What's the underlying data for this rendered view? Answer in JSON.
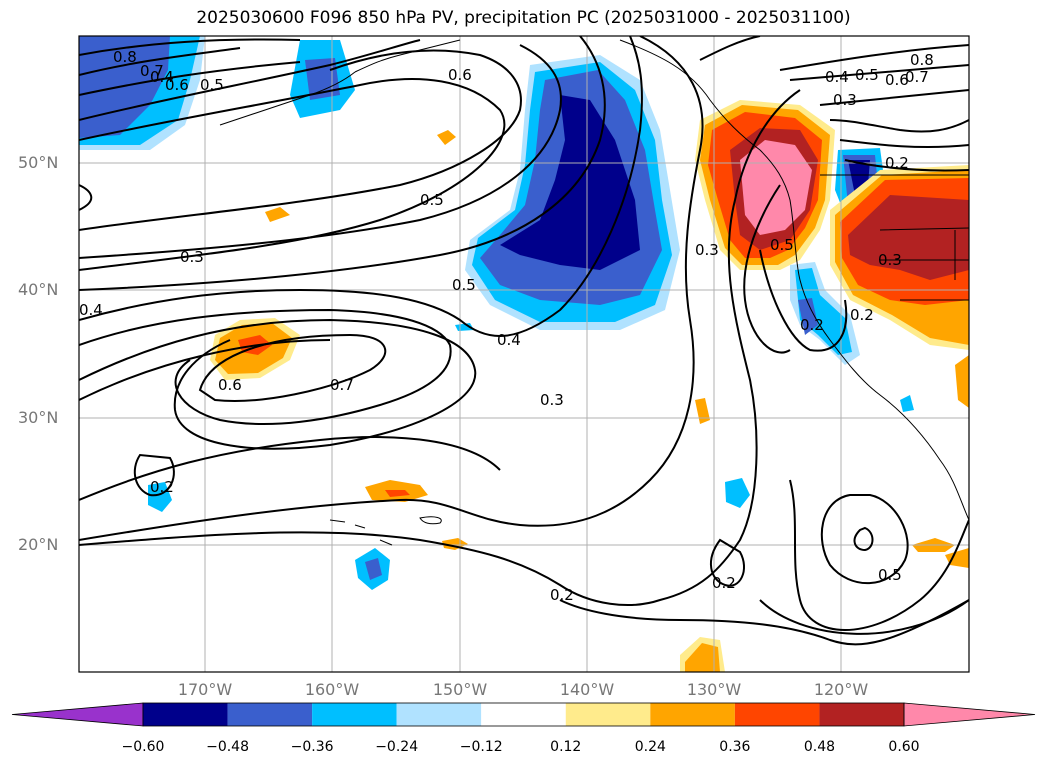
{
  "title": "2025030600 F096 850 hPa PV, precipitation PC (2025031000 - 2025031100)",
  "lat_labels": [
    "50°N",
    "40°N",
    "30°N",
    "20°N"
  ],
  "lon_labels": [
    "170°W",
    "160°W",
    "150°W",
    "140°W",
    "130°W",
    "120°W"
  ],
  "colorbar": {
    "ticks": [
      "−0.60",
      "−0.48",
      "−0.36",
      "−0.24",
      "−0.12",
      "0.12",
      "0.24",
      "0.36",
      "0.48",
      "0.60"
    ],
    "colors": [
      "#9932cc",
      "#00008b",
      "#3a5fcd",
      "#00bfff",
      "#b0e2ff",
      "#ffffff",
      "#ffeb8c",
      "#ffa500",
      "#ff4500",
      "#b22222",
      "#ff88aa"
    ]
  },
  "contour_labels": [
    "0.8",
    "0.7",
    "0.6",
    "0.5",
    "0.4",
    "0.6",
    "0.5",
    "0.3",
    "0.4",
    "0.5",
    "0.4",
    "0.3",
    "0.6",
    "0.7",
    "0.3",
    "0.2",
    "0.8",
    "0.7",
    "0.6",
    "0.5",
    "0.4",
    "0.3",
    "0.2",
    "0.3",
    "0.5",
    "0.2",
    "0.2",
    "0.5",
    "0.2",
    "0.2"
  ]
}
